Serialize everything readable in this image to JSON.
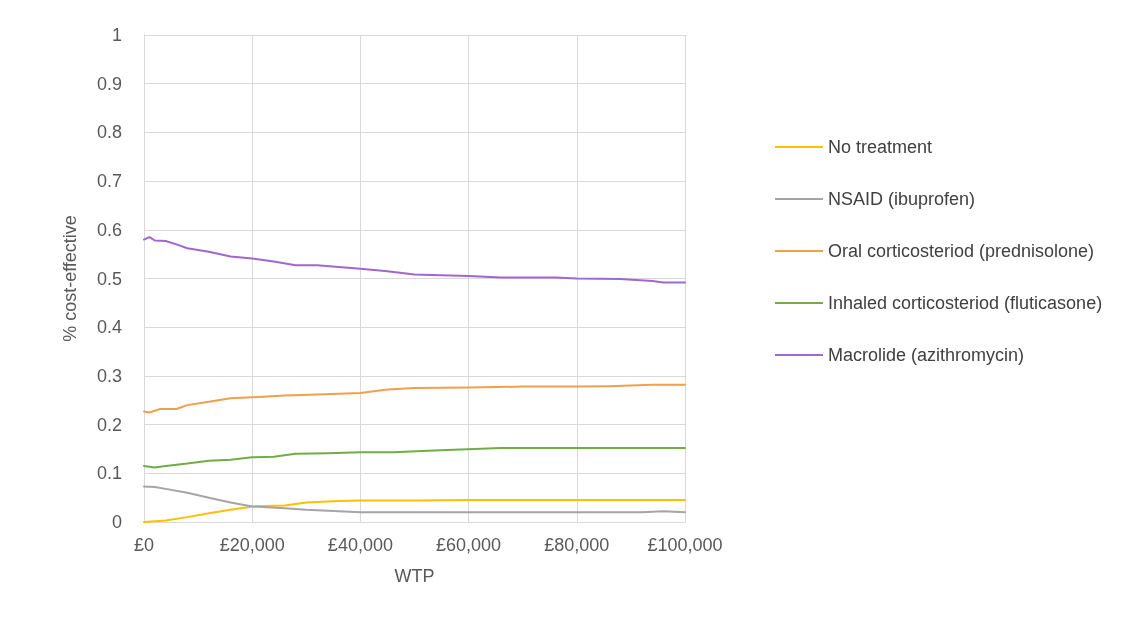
{
  "chart_data": {
    "type": "line",
    "xlabel": "WTP",
    "ylabel": "% cost-effective",
    "xlim": [
      0,
      100000
    ],
    "xticks": [
      {
        "value": 0,
        "label": "£0"
      },
      {
        "value": 20000,
        "label": "£20,000"
      },
      {
        "value": 40000,
        "label": "£40,000"
      },
      {
        "value": 60000,
        "label": "£60,000"
      },
      {
        "value": 80000,
        "label": "£80,000"
      },
      {
        "value": 100000,
        "label": "£100,000"
      }
    ],
    "ylim": [
      0,
      1
    ],
    "yticks": [
      0,
      0.1,
      0.2,
      0.3,
      0.4,
      0.5,
      0.6,
      0.7,
      0.8,
      0.9,
      1
    ],
    "grid": true,
    "legend": "right",
    "marker": "none",
    "line_style": "solid",
    "series": [
      {
        "name": "No treatment",
        "color": "#ffc000",
        "x": [
          0,
          4000,
          8000,
          12000,
          16000,
          20000,
          26000,
          30000,
          36000,
          40000,
          50000,
          60000,
          100000
        ],
        "values": [
          0.0,
          0.003,
          0.01,
          0.018,
          0.025,
          0.032,
          0.034,
          0.04,
          0.043,
          0.044,
          0.044,
          0.045,
          0.045
        ]
      },
      {
        "name": "NSAID (ibuprofen)",
        "color": "#a5a5a5",
        "x": [
          0,
          2000,
          4000,
          8000,
          12000,
          16000,
          20000,
          26000,
          30000,
          36000,
          40000,
          60000,
          80000,
          92000,
          96000,
          100000
        ],
        "values": [
          0.073,
          0.072,
          0.068,
          0.06,
          0.05,
          0.04,
          0.032,
          0.028,
          0.025,
          0.022,
          0.02,
          0.02,
          0.02,
          0.02,
          0.022,
          0.02
        ]
      },
      {
        "name": "Oral corticosteriod (prednisolone)",
        "color": "#f0a04a",
        "x": [
          0,
          1000,
          3000,
          6000,
          8000,
          12000,
          16000,
          20000,
          26000,
          32000,
          40000,
          45000,
          50000,
          60000,
          70000,
          80000,
          86000,
          94000,
          100000
        ],
        "values": [
          0.227,
          0.225,
          0.232,
          0.232,
          0.24,
          0.247,
          0.254,
          0.256,
          0.26,
          0.262,
          0.265,
          0.272,
          0.275,
          0.276,
          0.278,
          0.278,
          0.279,
          0.282,
          0.282
        ]
      },
      {
        "name": "Inhaled corticosteriod (fluticasone)",
        "color": "#70ad47",
        "x": [
          0,
          2000,
          4000,
          8000,
          12000,
          16000,
          20000,
          24000,
          28000,
          34000,
          40000,
          46000,
          56000,
          66000,
          80000,
          100000
        ],
        "values": [
          0.115,
          0.112,
          0.115,
          0.12,
          0.126,
          0.128,
          0.133,
          0.134,
          0.14,
          0.141,
          0.143,
          0.143,
          0.148,
          0.152,
          0.152,
          0.152
        ]
      },
      {
        "name": "Macrolide (azithromycin)",
        "color": "#a066d3",
        "x": [
          0,
          1000,
          2000,
          4000,
          6000,
          8000,
          12000,
          16000,
          20000,
          24000,
          28000,
          32000,
          40000,
          45000,
          50000,
          60000,
          66000,
          76000,
          80000,
          88000,
          94000,
          96000,
          100000
        ],
        "values": [
          0.58,
          0.585,
          0.578,
          0.577,
          0.57,
          0.562,
          0.555,
          0.545,
          0.541,
          0.535,
          0.527,
          0.527,
          0.52,
          0.515,
          0.508,
          0.505,
          0.502,
          0.502,
          0.5,
          0.499,
          0.495,
          0.492,
          0.492
        ]
      }
    ]
  }
}
